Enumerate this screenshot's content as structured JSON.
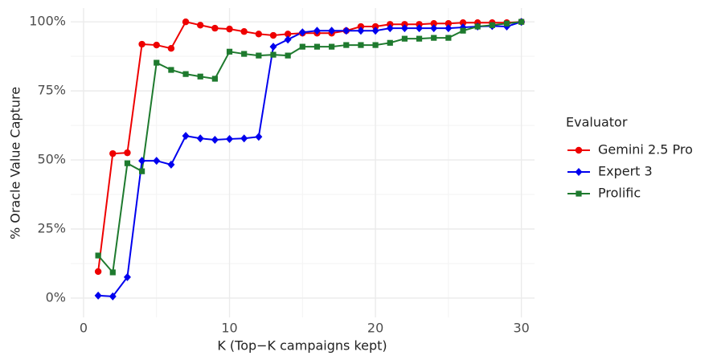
{
  "chart_data": {
    "type": "line",
    "x_label": "K (Top−K campaigns kept)",
    "y_label": "% Oracle Value Capture",
    "x": [
      1,
      2,
      3,
      4,
      5,
      6,
      7,
      8,
      9,
      10,
      11,
      12,
      13,
      14,
      15,
      16,
      17,
      18,
      19,
      20,
      21,
      22,
      23,
      24,
      25,
      26,
      27,
      28,
      29,
      30
    ],
    "series": [
      {
        "name": "Gemini 2.5 Pro",
        "color": "#ee0000",
        "marker": "circle",
        "values": [
          9.6,
          52.3,
          52.6,
          91.9,
          91.6,
          90.4,
          100,
          98.8,
          97.7,
          97.4,
          96.5,
          95.6,
          95.1,
          95.6,
          95.9,
          95.9,
          95.9,
          96.8,
          98.3,
          98.3,
          99.1,
          99.1,
          99.1,
          99.4,
          99.4,
          99.7,
          99.7,
          99.7,
          99.7,
          100
        ]
      },
      {
        "name": "Expert 3",
        "color": "#0000ee",
        "marker": "diamond",
        "values": [
          0.9,
          0.6,
          7.6,
          49.7,
          49.7,
          48.3,
          58.7,
          57.8,
          57.3,
          57.6,
          57.8,
          58.4,
          91,
          93.6,
          96.2,
          96.8,
          96.8,
          96.8,
          96.8,
          96.8,
          97.7,
          97.7,
          97.7,
          97.7,
          97.7,
          98,
          98.3,
          98.5,
          98.3,
          100
        ]
      },
      {
        "name": "Prolific",
        "color": "#1e7a2e",
        "marker": "square",
        "values": [
          15.4,
          9.3,
          48.8,
          45.9,
          85.2,
          82.6,
          81.1,
          80.2,
          79.4,
          89.2,
          88.4,
          87.8,
          88.1,
          87.8,
          91,
          91,
          91,
          91.6,
          91.6,
          91.6,
          92.4,
          93.9,
          93.9,
          94.2,
          94.2,
          96.8,
          98.3,
          98.8,
          99.4,
          100
        ]
      }
    ],
    "xlim": [
      -0.88,
      30.9
    ],
    "xticks": [
      0,
      10,
      20,
      30
    ],
    "ylim": [
      -7,
      105
    ],
    "yticks": [
      {
        "value": 0,
        "label": "0%"
      },
      {
        "value": 25,
        "label": "25%"
      },
      {
        "value": 50,
        "label": "50%"
      },
      {
        "value": 75,
        "label": "75%"
      },
      {
        "value": 100,
        "label": "100%"
      }
    ],
    "grid": true,
    "minor_grid": true,
    "legend": {
      "title": "Evaluator",
      "position": "right"
    }
  }
}
